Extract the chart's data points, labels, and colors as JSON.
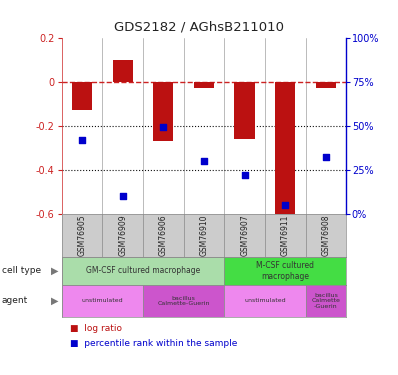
{
  "title": "GDS2182 / AGhsB211010",
  "samples": [
    "GSM76905",
    "GSM76909",
    "GSM76906",
    "GSM76910",
    "GSM76907",
    "GSM76911",
    "GSM76908"
  ],
  "log_ratio": [
    -0.13,
    0.1,
    -0.27,
    -0.03,
    -0.26,
    -0.6,
    -0.03
  ],
  "percentile": [
    0.42,
    0.1,
    0.49,
    0.3,
    0.22,
    0.05,
    0.32
  ],
  "ylim_left": [
    -0.6,
    0.2
  ],
  "yticks_left": [
    -0.6,
    -0.4,
    -0.2,
    0.0,
    0.2
  ],
  "ytick_labels_left": [
    "-0.6",
    "-0.4",
    "-0.2",
    "0",
    "0.2"
  ],
  "ytick_labels_right": [
    "0%",
    "25%",
    "50%",
    "75%",
    "100%"
  ],
  "bar_color": "#bb1111",
  "dot_color": "#0000cc",
  "hline_color": "#cc2222",
  "dotted_line_color": "#111111",
  "cell_type_row": [
    {
      "label": "GM-CSF cultured macrophage",
      "span": [
        0,
        4
      ],
      "color": "#aaddaa"
    },
    {
      "label": "M-CSF cultured\nmacrophage",
      "span": [
        4,
        7
      ],
      "color": "#44dd44"
    }
  ],
  "agent_row": [
    {
      "label": "unstimulated",
      "span": [
        0,
        2
      ],
      "color": "#ee88ee"
    },
    {
      "label": "bacillus\nCalmette-Guerin",
      "span": [
        2,
        4
      ],
      "color": "#cc55cc"
    },
    {
      "label": "unstimulated",
      "span": [
        4,
        6
      ],
      "color": "#ee88ee"
    },
    {
      "label": "bacillus\nCalmette\n-Guerin",
      "span": [
        6,
        7
      ],
      "color": "#cc55cc"
    }
  ],
  "left_axis_color": "#cc2222",
  "right_axis_color": "#0000cc",
  "background_color": "#ffffff",
  "sample_box_color": "#cccccc",
  "border_color": "#888888"
}
